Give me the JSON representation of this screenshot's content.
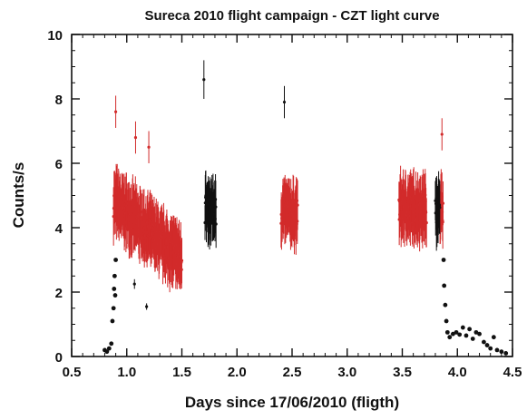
{
  "chart_data": {
    "type": "scatter",
    "title": "Sureca 2010 flight campaign - CZT light curve",
    "xlabel": "Days since 17/06/2010 (fligth)",
    "ylabel": "Counts/s",
    "xlim": [
      0.5,
      4.5
    ],
    "ylim": [
      0,
      10
    ],
    "x_ticks": [
      "0.5",
      "1.0",
      "1.5",
      "2.0",
      "2.5",
      "3.0",
      "3.5",
      "4.0",
      "4.5"
    ],
    "y_ticks": [
      "0",
      "2",
      "4",
      "6",
      "8",
      "10"
    ],
    "grid": false,
    "colors": {
      "red": "#d22b2b",
      "black": "#111111"
    },
    "series": [
      {
        "color": "red",
        "style": "errorbar",
        "blocks": [
          {
            "x": [
              0.88,
              1.5
            ],
            "level_start": 4.8,
            "level_end": 3.0,
            "err": 0.75
          },
          {
            "x": [
              2.4,
              2.55
            ],
            "level_start": 4.5,
            "level_end": 4.4,
            "err": 0.7
          },
          {
            "x": [
              3.47,
              3.72
            ],
            "level_start": 4.6,
            "level_end": 4.6,
            "err": 0.75
          },
          {
            "x": [
              3.84,
              3.87
            ],
            "level_start": 4.6,
            "level_end": 4.6,
            "err": 0.8
          }
        ],
        "points": [
          {
            "x": 0.9,
            "y": 7.6,
            "err": 0.5
          },
          {
            "x": 1.08,
            "y": 6.8,
            "err": 0.5
          },
          {
            "x": 1.2,
            "y": 6.5,
            "err": 0.5
          },
          {
            "x": 3.86,
            "y": 6.9,
            "err": 0.5
          }
        ]
      },
      {
        "color": "black",
        "style": "errorbar",
        "blocks": [
          {
            "x": [
              1.71,
              1.81
            ],
            "level_start": 4.6,
            "level_end": 4.5,
            "err": 0.7
          },
          {
            "x": [
              3.8,
              3.84
            ],
            "level_start": 4.5,
            "level_end": 4.5,
            "err": 0.75
          }
        ],
        "points": [
          {
            "x": 1.7,
            "y": 8.6,
            "err": 0.6
          },
          {
            "x": 2.43,
            "y": 7.9,
            "err": 0.5
          },
          {
            "x": 1.07,
            "y": 2.25,
            "err": 0.15
          },
          {
            "x": 1.18,
            "y": 1.55,
            "err": 0.1
          }
        ]
      },
      {
        "color": "black",
        "style": "dots",
        "points": [
          {
            "x": 0.8,
            "y": 0.2
          },
          {
            "x": 0.82,
            "y": 0.15
          },
          {
            "x": 0.84,
            "y": 0.25
          },
          {
            "x": 0.86,
            "y": 0.4
          },
          {
            "x": 0.87,
            "y": 1.1
          },
          {
            "x": 0.88,
            "y": 1.5
          },
          {
            "x": 0.885,
            "y": 2.1
          },
          {
            "x": 0.89,
            "y": 2.5
          },
          {
            "x": 0.895,
            "y": 1.9
          },
          {
            "x": 0.9,
            "y": 3.0
          },
          {
            "x": 3.875,
            "y": 3.0
          },
          {
            "x": 3.88,
            "y": 2.2
          },
          {
            "x": 3.89,
            "y": 1.6
          },
          {
            "x": 3.9,
            "y": 1.1
          },
          {
            "x": 3.91,
            "y": 0.75
          },
          {
            "x": 3.93,
            "y": 0.6
          },
          {
            "x": 3.96,
            "y": 0.7
          },
          {
            "x": 3.99,
            "y": 0.75
          },
          {
            "x": 4.02,
            "y": 0.68
          },
          {
            "x": 4.05,
            "y": 0.9
          },
          {
            "x": 4.08,
            "y": 0.65
          },
          {
            "x": 4.11,
            "y": 0.85
          },
          {
            "x": 4.14,
            "y": 0.55
          },
          {
            "x": 4.17,
            "y": 0.75
          },
          {
            "x": 4.2,
            "y": 0.7
          },
          {
            "x": 4.24,
            "y": 0.45
          },
          {
            "x": 4.27,
            "y": 0.35
          },
          {
            "x": 4.3,
            "y": 0.25
          },
          {
            "x": 4.33,
            "y": 0.6
          },
          {
            "x": 4.36,
            "y": 0.2
          },
          {
            "x": 4.4,
            "y": 0.15
          },
          {
            "x": 4.44,
            "y": 0.1
          }
        ]
      }
    ]
  }
}
